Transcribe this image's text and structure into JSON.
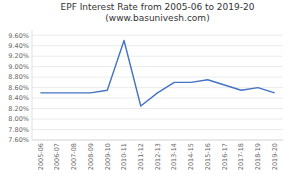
{
  "chart_data": {
    "type": "line",
    "title": "EPF Interest Rate from 2005-06 to 2019-20\n(www.basunivesh.com)",
    "categories": [
      "2005-06",
      "2006-07",
      "2007-08",
      "2008-09",
      "2009-10",
      "2010-11",
      "2011-12",
      "2012-13",
      "2013-14",
      "2014-15",
      "2015-16",
      "2016-17",
      "2017-18",
      "2018-19",
      "2019-20"
    ],
    "values": [
      8.5,
      8.5,
      8.5,
      8.5,
      8.55,
      9.5,
      8.25,
      8.5,
      8.7,
      8.7,
      8.75,
      8.65,
      8.55,
      8.6,
      8.5
    ],
    "color": "#4472C4",
    "ylim": [
      7.6,
      9.7
    ],
    "yticks": [
      {
        "value": 7.6,
        "label": "7.60%"
      },
      {
        "value": 7.8,
        "label": "7.80%"
      },
      {
        "value": 8.0,
        "label": "8.00%"
      },
      {
        "value": 8.2,
        "label": "8.20%"
      },
      {
        "value": 8.4,
        "label": "8.40%"
      },
      {
        "value": 8.6,
        "label": "8.60%"
      },
      {
        "value": 8.8,
        "label": "8.80%"
      },
      {
        "value": 9.0,
        "label": "9.00%"
      },
      {
        "value": 9.2,
        "label": "9.20%"
      },
      {
        "value": 9.4,
        "label": "9.40%"
      },
      {
        "value": 9.6,
        "label": "9.60%"
      }
    ],
    "grid": true
  }
}
